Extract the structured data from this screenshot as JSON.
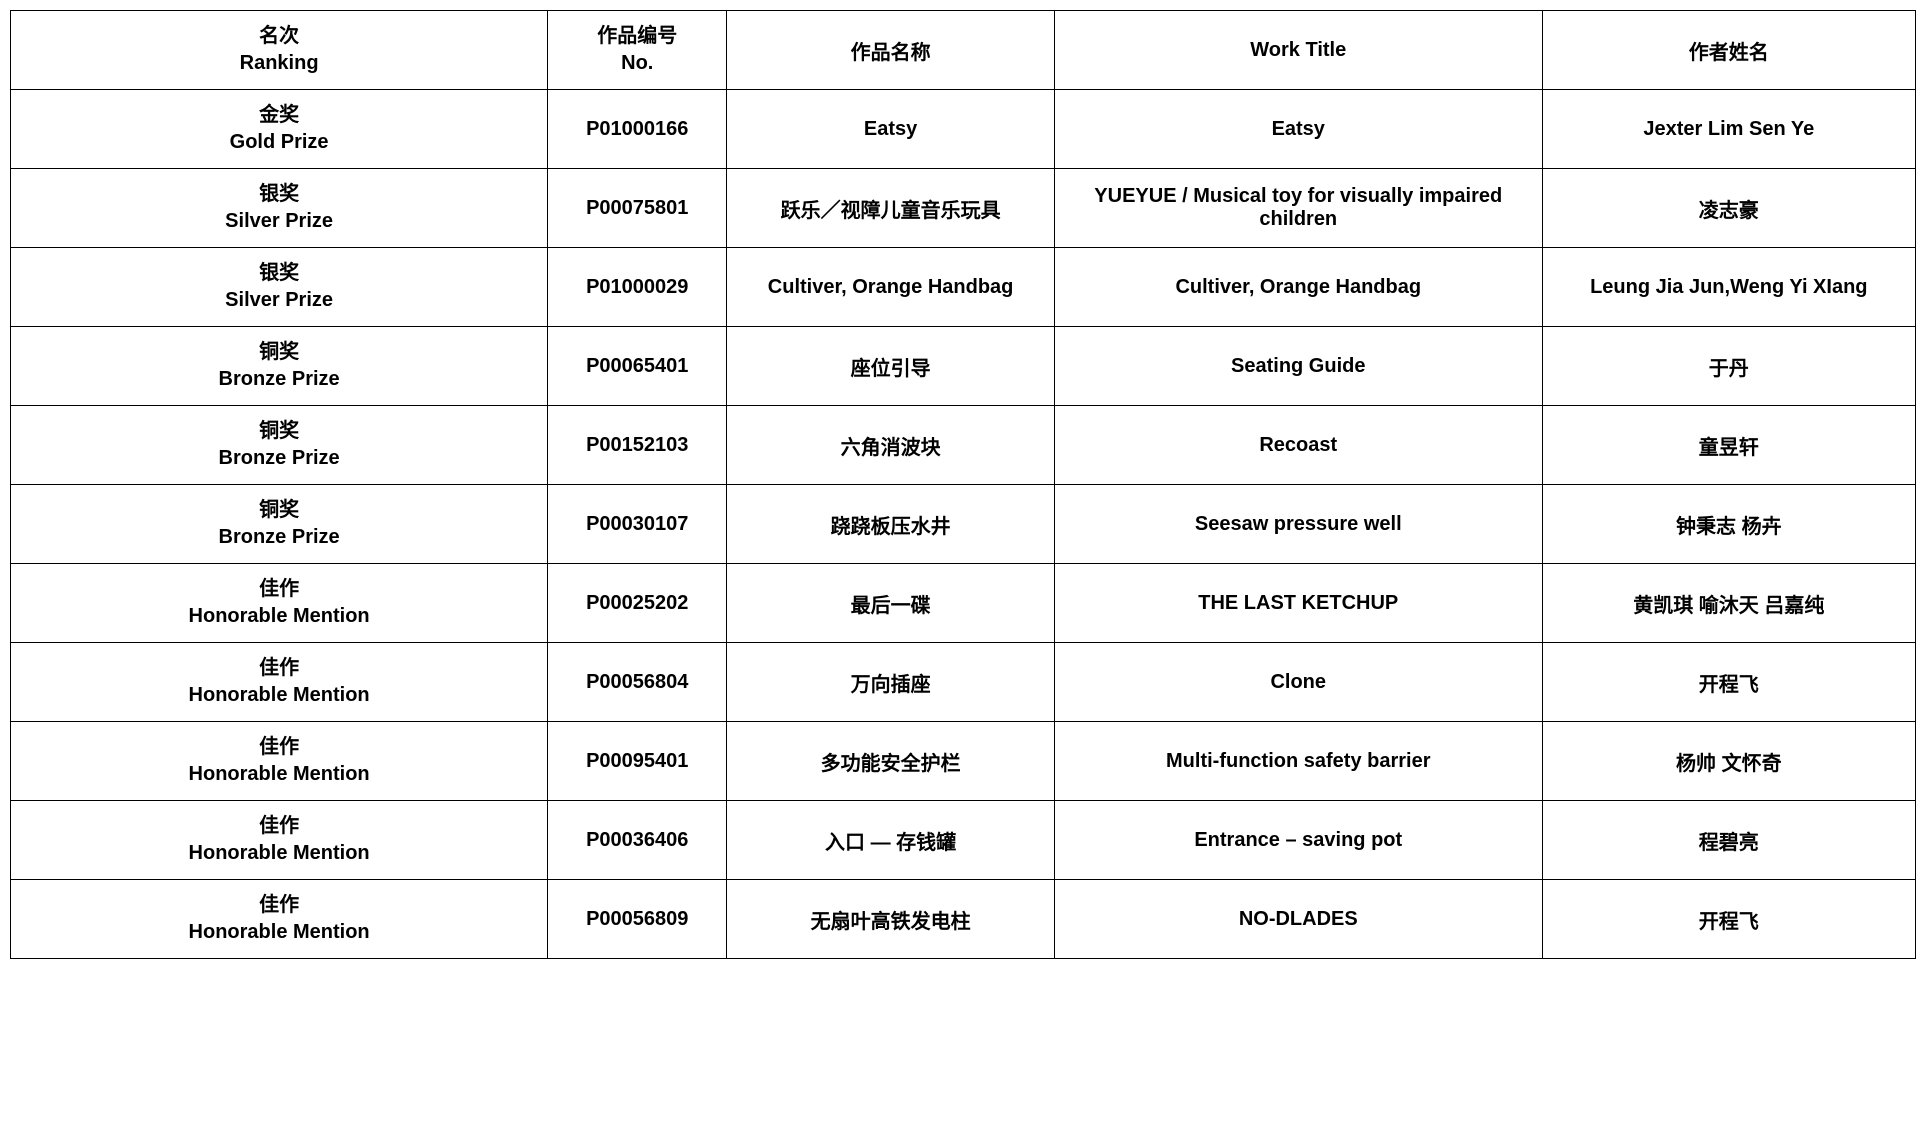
{
  "table": {
    "header": {
      "ranking_cn": "名次",
      "ranking_en": "Ranking",
      "no_cn": "作品编号",
      "no_en": "No.",
      "name_cn": "作品名称",
      "name_en": "Work Title",
      "author": "作者姓名"
    },
    "rows": [
      {
        "ranking_cn": "金奖",
        "ranking_en": "Gold Prize",
        "no": "P01000166",
        "name_cn": "Eatsy",
        "name_en": "Eatsy",
        "author": "Jexter Lim Sen Ye"
      },
      {
        "ranking_cn": "银奖",
        "ranking_en": "Silver Prize",
        "no": "P00075801",
        "name_cn": "跃乐／视障儿童音乐玩具",
        "name_en": "YUEYUE / Musical toy for visually impaired children",
        "author": "凌志豪"
      },
      {
        "ranking_cn": "银奖",
        "ranking_en": "Silver Prize",
        "no": "P01000029",
        "name_cn": "Cultiver, Orange Handbag",
        "name_en": "Cultiver, Orange Handbag",
        "author": "Leung Jia Jun,Weng Yi XIang"
      },
      {
        "ranking_cn": "铜奖",
        "ranking_en": "Bronze Prize",
        "no": "P00065401",
        "name_cn": "座位引导",
        "name_en": "Seating Guide",
        "author": "于丹"
      },
      {
        "ranking_cn": "铜奖",
        "ranking_en": "Bronze Prize",
        "no": "P00152103",
        "name_cn": "六角消波块",
        "name_en": "Recoast",
        "author": "童昱轩"
      },
      {
        "ranking_cn": "铜奖",
        "ranking_en": "Bronze Prize",
        "no": "P00030107",
        "name_cn": "跷跷板压水井",
        "name_en": "Seesaw pressure well",
        "author": "钟秉志 杨卉"
      },
      {
        "ranking_cn": "佳作",
        "ranking_en": "Honorable Mention",
        "no": "P00025202",
        "name_cn": "最后一碟",
        "name_en": "THE LAST KETCHUP",
        "author": "黄凯琪 喻沐天 吕嘉纯"
      },
      {
        "ranking_cn": "佳作",
        "ranking_en": "Honorable Mention",
        "no": "P00056804",
        "name_cn": "万向插座",
        "name_en": "Clone",
        "author": "开程飞"
      },
      {
        "ranking_cn": "佳作",
        "ranking_en": "Honorable Mention",
        "no": "P00095401",
        "name_cn": "多功能安全护栏",
        "name_en": "Multi-function safety barrier",
        "author": "杨帅 文怀奇"
      },
      {
        "ranking_cn": "佳作",
        "ranking_en": "Honorable Mention",
        "no": "P00036406",
        "name_cn": "入口 — 存钱罐",
        "name_en": "Entrance – saving pot",
        "author": "程碧亮"
      },
      {
        "ranking_cn": "佳作",
        "ranking_en": "Honorable Mention",
        "no": "P00056809",
        "name_cn": "无扇叶高铁发电柱",
        "name_en": "NO-DLADES",
        "author": "开程飞"
      }
    ],
    "columns_widths_pct": [
      28.2,
      9.4,
      17.2,
      25.6,
      19.6
    ],
    "border_color": "#000000",
    "background_color": "#ffffff",
    "text_color": "#000000",
    "header_fontsize_pt": 15,
    "cell_fontsize_pt": 15,
    "font_weight": "bold"
  }
}
